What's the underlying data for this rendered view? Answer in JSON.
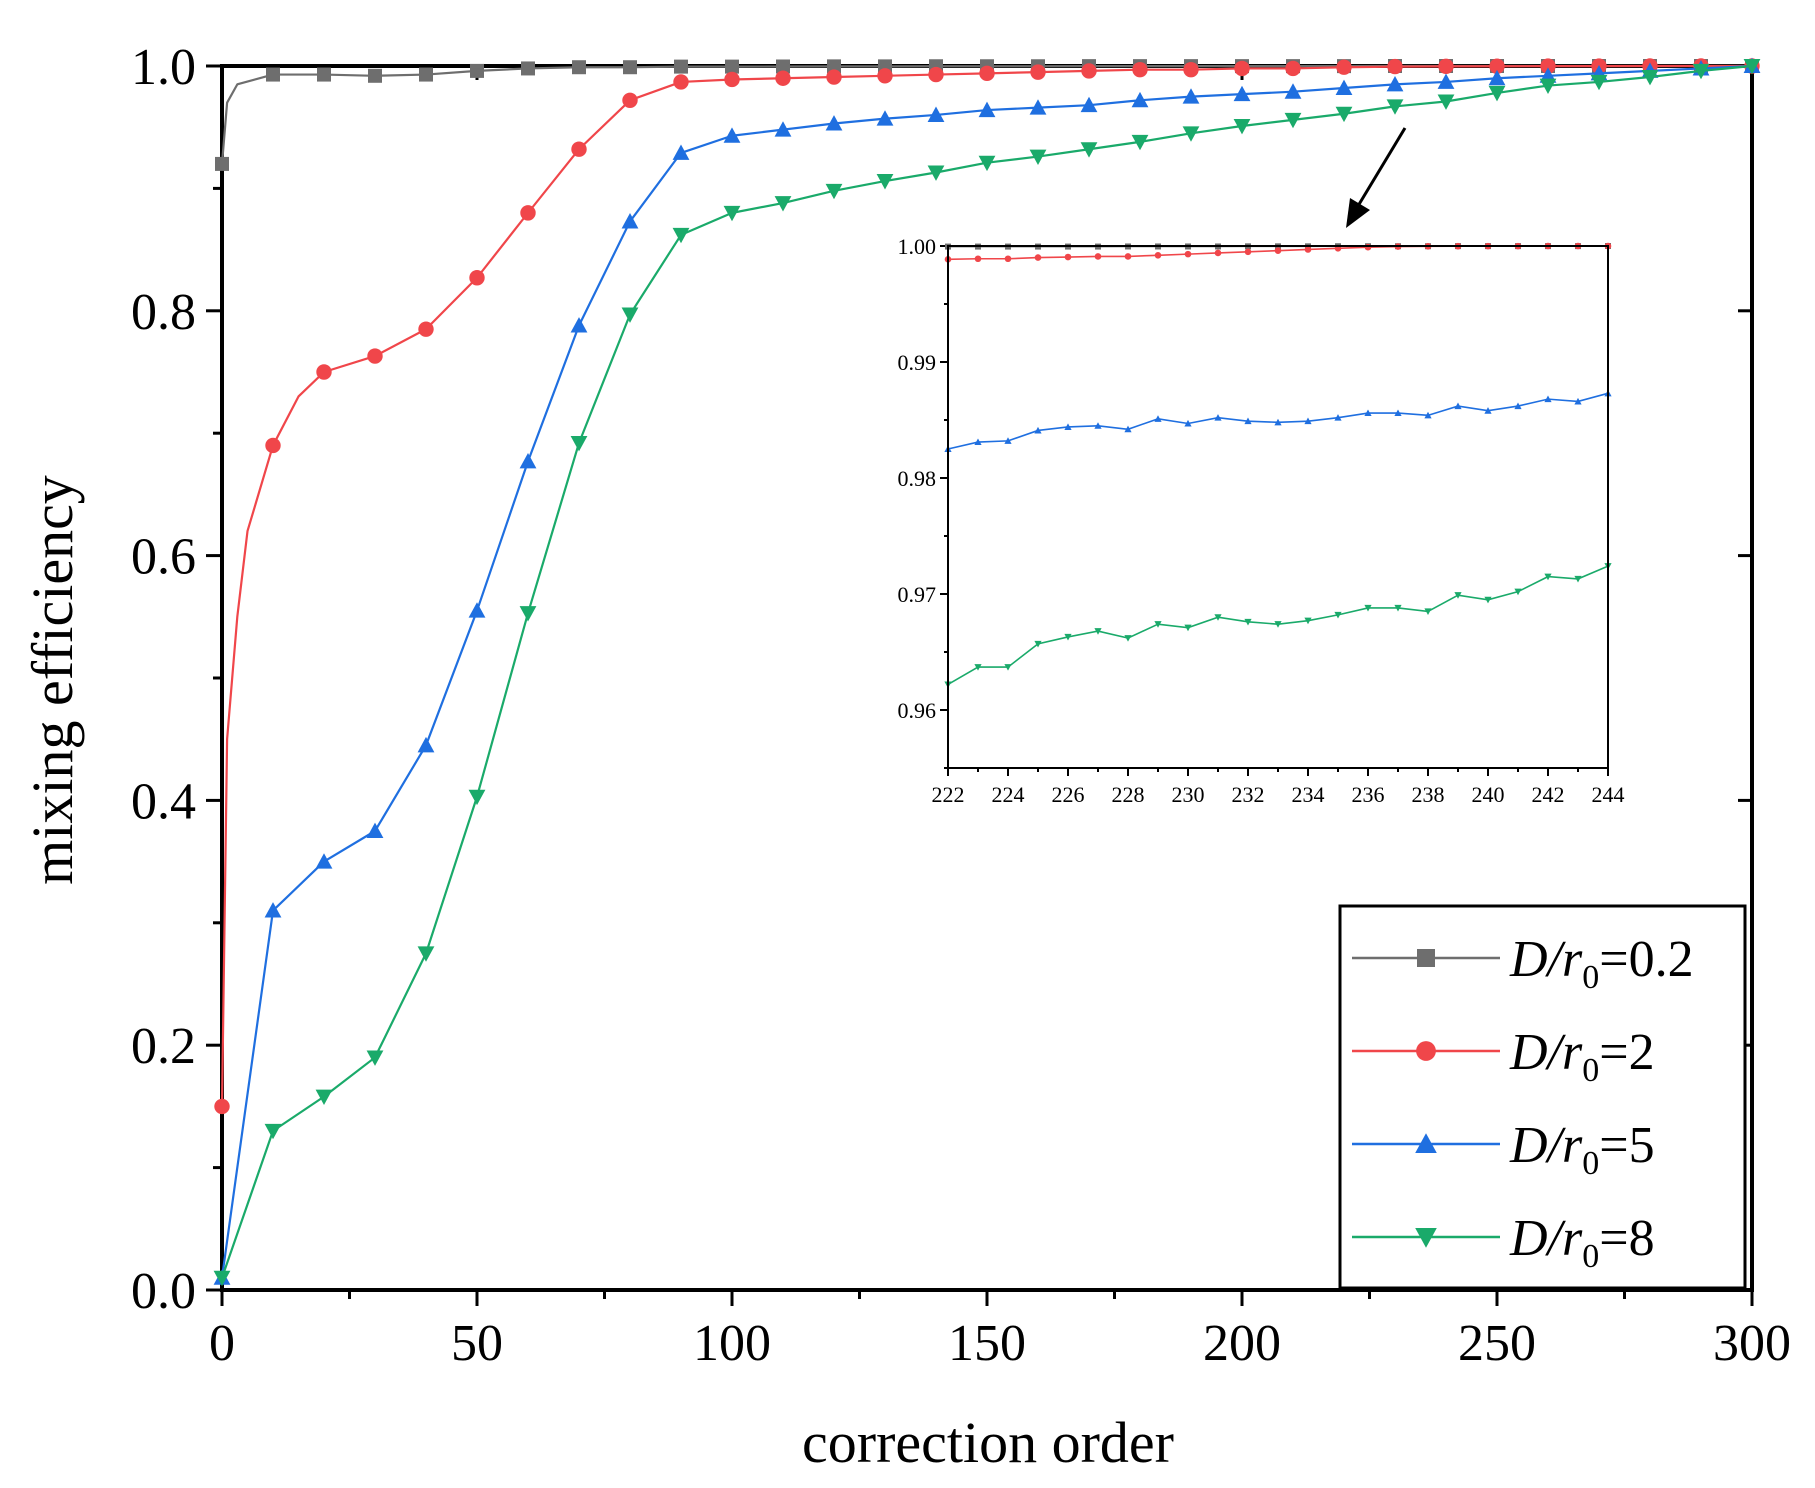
{
  "chart_data": {
    "type": "line",
    "xlabel": "correction order",
    "ylabel": "mixing efficiency",
    "xlim": [
      0,
      300
    ],
    "ylim": [
      0,
      1.0
    ],
    "xticks": [
      "0",
      "50",
      "100",
      "150",
      "200",
      "250",
      "300"
    ],
    "yticks": [
      "0.0",
      "0.2",
      "0.4",
      "0.6",
      "0.8",
      "1.0"
    ],
    "legend_position": "bottom-right",
    "series": [
      {
        "name": "D/r0=0.2",
        "legend": {
          "italic": "D/r",
          "sub": "0",
          "value": "=0.2"
        },
        "color": "#6e6e6e",
        "marker": "square",
        "x": [
          0,
          1,
          3,
          10,
          20,
          30,
          40,
          50,
          60,
          70,
          80,
          90,
          100,
          110,
          120,
          130,
          140,
          150,
          160,
          170,
          180,
          190,
          200,
          210,
          220,
          230,
          240,
          250,
          260,
          270,
          280,
          290,
          300
        ],
        "values": [
          0.92,
          0.97,
          0.985,
          0.993,
          0.993,
          0.992,
          0.993,
          0.996,
          0.998,
          0.999,
          0.999,
          0.9995,
          0.9995,
          0.9996,
          0.9997,
          0.9997,
          0.9998,
          0.9998,
          0.9998,
          0.9999,
          0.9999,
          0.9999,
          0.9999,
          0.9999,
          0.9999,
          1.0,
          1.0,
          1.0,
          1.0,
          1.0,
          1.0,
          1.0,
          1.0
        ]
      },
      {
        "name": "D/r0=2",
        "legend": {
          "italic": "D/r",
          "sub": "0",
          "value": "=2"
        },
        "color": "#f0464a",
        "marker": "circle",
        "x": [
          0,
          1,
          3,
          5,
          10,
          15,
          20,
          30,
          40,
          50,
          60,
          70,
          80,
          90,
          100,
          110,
          120,
          130,
          140,
          150,
          160,
          170,
          180,
          190,
          200,
          210,
          220,
          230,
          240,
          250,
          260,
          270,
          280,
          290,
          300
        ],
        "values": [
          0.15,
          0.45,
          0.55,
          0.62,
          0.69,
          0.73,
          0.75,
          0.763,
          0.785,
          0.827,
          0.88,
          0.932,
          0.972,
          0.987,
          0.989,
          0.99,
          0.991,
          0.992,
          0.993,
          0.994,
          0.995,
          0.996,
          0.997,
          0.997,
          0.998,
          0.998,
          0.999,
          0.9995,
          0.9997,
          0.9998,
          0.9999,
          0.9999,
          1.0,
          1.0,
          1.0
        ]
      },
      {
        "name": "D/r0=5",
        "legend": {
          "italic": "D/r",
          "sub": "0",
          "value": "=5"
        },
        "color": "#1f6fe0",
        "marker": "triangle-up",
        "x": [
          0,
          10,
          20,
          30,
          40,
          50,
          60,
          70,
          80,
          90,
          100,
          110,
          120,
          130,
          140,
          150,
          160,
          170,
          180,
          190,
          200,
          210,
          220,
          230,
          240,
          250,
          260,
          270,
          280,
          290,
          300
        ],
        "values": [
          0.01,
          0.31,
          0.35,
          0.375,
          0.445,
          0.555,
          0.677,
          0.788,
          0.873,
          0.929,
          0.943,
          0.948,
          0.953,
          0.957,
          0.96,
          0.964,
          0.966,
          0.968,
          0.972,
          0.975,
          0.977,
          0.979,
          0.982,
          0.985,
          0.987,
          0.99,
          0.992,
          0.994,
          0.996,
          0.998,
          1.0
        ]
      },
      {
        "name": "D/r0=8",
        "legend": {
          "italic": "D/r",
          "sub": "0",
          "value": "=8"
        },
        "color": "#1aaa6a",
        "marker": "triangle-down",
        "x": [
          0,
          10,
          20,
          30,
          40,
          50,
          60,
          70,
          80,
          90,
          100,
          110,
          120,
          130,
          140,
          150,
          160,
          170,
          180,
          190,
          200,
          210,
          220,
          230,
          240,
          250,
          260,
          270,
          280,
          290,
          300
        ],
        "values": [
          0.01,
          0.13,
          0.158,
          0.19,
          0.275,
          0.403,
          0.553,
          0.692,
          0.797,
          0.862,
          0.88,
          0.888,
          0.898,
          0.906,
          0.913,
          0.921,
          0.926,
          0.932,
          0.938,
          0.945,
          0.951,
          0.956,
          0.961,
          0.967,
          0.971,
          0.978,
          0.984,
          0.987,
          0.991,
          0.996,
          1.0
        ]
      }
    ],
    "inset": {
      "xlim": [
        222,
        244
      ],
      "ylim": [
        0.955,
        1.0
      ],
      "xticks": [
        "222",
        "224",
        "226",
        "228",
        "230",
        "232",
        "234",
        "236",
        "238",
        "240",
        "242",
        "244"
      ],
      "yticks": [
        "0.96",
        "0.97",
        "0.98",
        "0.99",
        "1.00"
      ],
      "x": [
        222,
        223,
        224,
        225,
        226,
        227,
        228,
        229,
        230,
        231,
        232,
        233,
        234,
        235,
        236,
        237,
        238,
        239,
        240,
        241,
        242,
        243,
        244
      ],
      "series": [
        {
          "name": "D/r0=0.2",
          "color": "#6e6e6e",
          "values": [
            0.99995,
            0.99995,
            0.99995,
            0.99995,
            0.99995,
            0.99995,
            0.99996,
            0.99996,
            0.99996,
            0.99996,
            0.99997,
            0.99997,
            0.99997,
            0.99998,
            0.99998,
            0.99998,
            0.99998,
            0.99999,
            0.99999,
            0.99999,
            0.99999,
            0.99999,
            1.0
          ]
        },
        {
          "name": "D/r0=2",
          "color": "#f0464a",
          "values": [
            0.99885,
            0.9989,
            0.9989,
            0.999,
            0.99905,
            0.9991,
            0.9991,
            0.9992,
            0.9993,
            0.9994,
            0.9995,
            0.9996,
            0.9997,
            0.9998,
            0.9999,
            0.99995,
            0.99997,
            0.99998,
            0.99999,
            0.99999,
            1.0,
            1.0,
            1.0
          ]
        },
        {
          "name": "D/r0=5",
          "color": "#1f6fe0",
          "values": [
            0.9825,
            0.9831,
            0.9832,
            0.9841,
            0.9844,
            0.9845,
            0.9842,
            0.9851,
            0.9847,
            0.9852,
            0.9849,
            0.9848,
            0.9849,
            0.9852,
            0.9856,
            0.9856,
            0.9854,
            0.9862,
            0.9858,
            0.9862,
            0.9868,
            0.9866,
            0.9873
          ]
        },
        {
          "name": "D/r0=8",
          "color": "#1aaa6a",
          "values": [
            0.9622,
            0.9637,
            0.9637,
            0.9657,
            0.9663,
            0.9668,
            0.9662,
            0.9674,
            0.9671,
            0.968,
            0.9676,
            0.9674,
            0.9677,
            0.9682,
            0.9688,
            0.9688,
            0.9685,
            0.9699,
            0.9695,
            0.9702,
            0.9715,
            0.9713,
            0.9724
          ]
        }
      ]
    }
  }
}
